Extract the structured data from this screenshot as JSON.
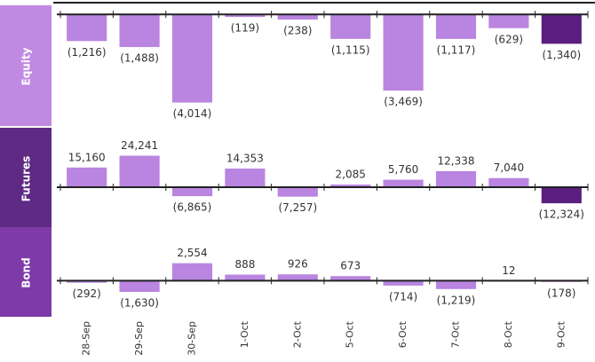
{
  "chart_data": {
    "type": "bar",
    "categories": [
      "28-Sep",
      "29-Sep",
      "30-Sep",
      "1-Oct",
      "2-Oct",
      "5-Oct",
      "6-Oct",
      "7-Oct",
      "8-Oct",
      "9-Oct"
    ],
    "series": [
      {
        "name": "Equity",
        "label_color": "#c08ae2",
        "ylim": [
          -5000,
          250
        ],
        "values": [
          -1216,
          -1488,
          -4014,
          -119,
          -238,
          -1115,
          -3469,
          -1117,
          -629,
          -1340
        ],
        "value_labels": [
          "(1,216)",
          "(1,488)",
          "(4,014)",
          "(119)",
          "(238)",
          "(1,115)",
          "(3,469)",
          "(1,117)",
          "(629)",
          "(1,340)"
        ],
        "colors": [
          "#b985e0",
          "#b985e0",
          "#b985e0",
          "#b985e0",
          "#b985e0",
          "#b985e0",
          "#b985e0",
          "#b985e0",
          "#b985e0",
          "#5a1f7e"
        ]
      },
      {
        "name": "Futures",
        "label_color": "#5e2a84",
        "ylim": [
          -30000,
          43000
        ],
        "values": [
          15160,
          24241,
          -6865,
          14353,
          -7257,
          2085,
          5760,
          12338,
          7040,
          -12324
        ],
        "value_labels": [
          "15,160",
          "24,241",
          "(6,865)",
          "14,353",
          "(7,257)",
          "2,085",
          "5,760",
          "12,338",
          "7,040",
          "(12,324)"
        ],
        "colors": [
          "#b985e0",
          "#b985e0",
          "#b985e0",
          "#b985e0",
          "#b985e0",
          "#b985e0",
          "#b985e0",
          "#b985e0",
          "#b985e0",
          "#5a1f7e"
        ]
      },
      {
        "name": "Bond",
        "label_color": "#7e3aa8",
        "ylim": [
          -5000,
          7300
        ],
        "values": [
          -292,
          -1630,
          2554,
          888,
          926,
          673,
          -714,
          -1219,
          12,
          -178
        ],
        "value_labels": [
          "(292)",
          "(1,630)",
          "2,554",
          "888",
          "926",
          "673",
          "(714)",
          "(1,219)",
          "12",
          "(178)"
        ],
        "colors": [
          "#b985e0",
          "#b985e0",
          "#b985e0",
          "#b985e0",
          "#b985e0",
          "#b985e0",
          "#b985e0",
          "#b985e0",
          "#b985e0",
          "#b985e0"
        ]
      }
    ]
  }
}
